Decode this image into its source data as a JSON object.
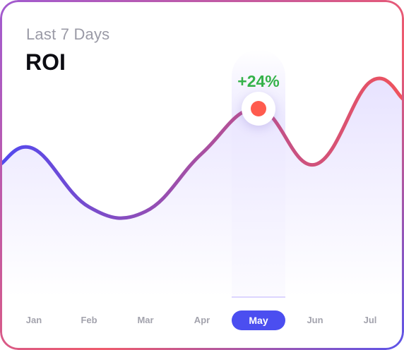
{
  "header": {
    "subtitle": "Last 7 Days",
    "title": "ROI"
  },
  "highlight": {
    "label": "+24%",
    "month": "May"
  },
  "colors": {
    "line_start": "#5249f0",
    "line_mid": "#b0509a",
    "line_end": "#f0535c",
    "area_fill": "#ece8ff",
    "active_pill": "#4b4ef0",
    "marker": "#ff5b4e",
    "delta_text": "#35b24a"
  },
  "chart_data": {
    "type": "area",
    "categories": [
      "Jan",
      "Feb",
      "Mar",
      "Apr",
      "May",
      "Jun",
      "Jul"
    ],
    "series": [
      {
        "values": [
          0.66,
          0.4,
          0.38,
          0.64,
          0.84,
          0.59,
          0.96
        ]
      }
    ],
    "ylim": [
      0,
      1.2
    ],
    "highlight_index": 4,
    "grid": false,
    "legend": "none"
  }
}
